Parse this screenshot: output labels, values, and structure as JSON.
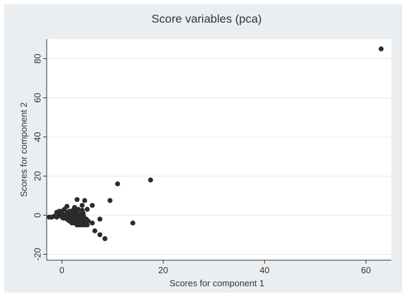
{
  "chart_data": {
    "type": "scatter",
    "title": "Score variables (pca)",
    "xlabel": "Scores for component 1",
    "ylabel": "Scores for component 2",
    "xlim": [
      -3,
      65
    ],
    "ylim": [
      -23,
      90
    ],
    "xticks": [
      0,
      20,
      40,
      60
    ],
    "yticks": [
      -20,
      0,
      20,
      40,
      60,
      80
    ],
    "grid": "horizontal",
    "legend": "none",
    "colors": {
      "background": "#ebeef1",
      "plot_area": "#ffffff",
      "marker": "#2b2b2b",
      "grid": "#e6e9ec",
      "axis": "#333333",
      "text": "#333333"
    },
    "points": [
      [
        63,
        85
      ],
      [
        17.5,
        18
      ],
      [
        11,
        16
      ],
      [
        9.5,
        7.5
      ],
      [
        14,
        -4
      ],
      [
        8.5,
        -12
      ],
      [
        7.5,
        -10
      ],
      [
        6.5,
        -8
      ],
      [
        7.5,
        -2
      ],
      [
        6,
        -4
      ],
      [
        6,
        5
      ],
      [
        5,
        3
      ],
      [
        4.5,
        7.5
      ],
      [
        3,
        8
      ],
      [
        4,
        5
      ],
      [
        2.5,
        4
      ],
      [
        1,
        4.5
      ],
      [
        0.5,
        3
      ],
      [
        -0.5,
        2
      ],
      [
        0,
        2
      ],
      [
        1.5,
        2
      ],
      [
        2,
        1
      ],
      [
        3,
        2
      ],
      [
        4,
        2.5
      ],
      [
        -1,
        1.5
      ],
      [
        0,
        1
      ],
      [
        1,
        1
      ],
      [
        -2.5,
        -1
      ],
      [
        -2,
        -1
      ],
      [
        -1.5,
        -0.5
      ],
      [
        -1,
        -1
      ],
      [
        -0.5,
        0
      ],
      [
        0,
        0
      ],
      [
        0.5,
        0
      ],
      [
        1,
        0
      ],
      [
        1.5,
        0
      ],
      [
        2,
        0
      ],
      [
        2.5,
        0
      ],
      [
        3,
        0
      ],
      [
        3.5,
        0
      ],
      [
        0,
        -1
      ],
      [
        0.5,
        -1
      ],
      [
        1,
        -1
      ],
      [
        1.5,
        -1
      ],
      [
        2,
        -1
      ],
      [
        2.5,
        -1
      ],
      [
        3,
        -1
      ],
      [
        3.5,
        -1
      ],
      [
        4,
        -1
      ],
      [
        1,
        -2
      ],
      [
        1.5,
        -2
      ],
      [
        2,
        -2
      ],
      [
        2.5,
        -2
      ],
      [
        3,
        -2
      ],
      [
        3.5,
        -2
      ],
      [
        4,
        -2
      ],
      [
        1.5,
        -3
      ],
      [
        2,
        -3
      ],
      [
        2.5,
        -3
      ],
      [
        3,
        -3
      ],
      [
        3.5,
        -3
      ],
      [
        4,
        -3
      ],
      [
        2,
        -4
      ],
      [
        2.5,
        -4
      ],
      [
        3,
        -4
      ],
      [
        3.5,
        -4
      ],
      [
        4,
        -4
      ],
      [
        4.5,
        -4
      ],
      [
        3,
        -5
      ],
      [
        3.5,
        -5
      ],
      [
        4,
        -5
      ],
      [
        4.5,
        -5
      ],
      [
        5,
        -5
      ],
      [
        1.2,
        1.5
      ],
      [
        2.2,
        2.5
      ],
      [
        3.2,
        3
      ],
      [
        -0.2,
        0.5
      ],
      [
        0.7,
        -0.5
      ],
      [
        1.7,
        0.5
      ],
      [
        2.7,
        0.5
      ],
      [
        3.7,
        0.5
      ],
      [
        0.3,
        -1.5
      ],
      [
        1.3,
        -2.5
      ],
      [
        2.3,
        -0.5
      ],
      [
        3.3,
        -2.5
      ],
      [
        4.3,
        -0.5
      ],
      [
        4.8,
        -2
      ],
      [
        4.2,
        1
      ],
      [
        5.2,
        -3
      ],
      [
        2.8,
        -3.5
      ]
    ]
  }
}
